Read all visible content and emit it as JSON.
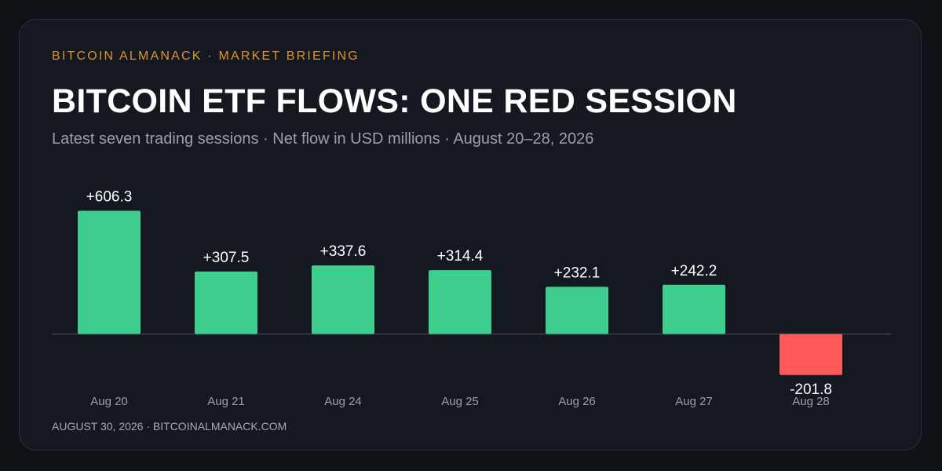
{
  "kicker": "BITCOIN ALMANACK · MARKET BRIEFING",
  "title": "BITCOIN ETF FLOWS: ONE RED SESSION",
  "subtitle": "Latest seven trading sessions · Net flow in USD millions · August 20–28, 2026",
  "footer": "AUGUST 30, 2026 · BITCOINALMANACK.COM",
  "colors": {
    "inflow": "#3ecf8e",
    "outflow": "#ff5a5a",
    "accent": "#e0922b",
    "background": "#141820"
  },
  "chart_data": {
    "type": "bar",
    "categories": [
      "Aug 20",
      "Aug 21",
      "Aug 24",
      "Aug 25",
      "Aug 26",
      "Aug 27",
      "Aug 28"
    ],
    "values": [
      606.3,
      307.5,
      337.6,
      314.4,
      232.1,
      242.2,
      -201.8
    ],
    "value_labels": [
      "+606.3",
      "+307.5",
      "+337.6",
      "+314.4",
      "+232.1",
      "+242.2",
      "-201.8"
    ],
    "ylim": [
      -201.8,
      606.3
    ],
    "grid": false,
    "legend": "none"
  }
}
